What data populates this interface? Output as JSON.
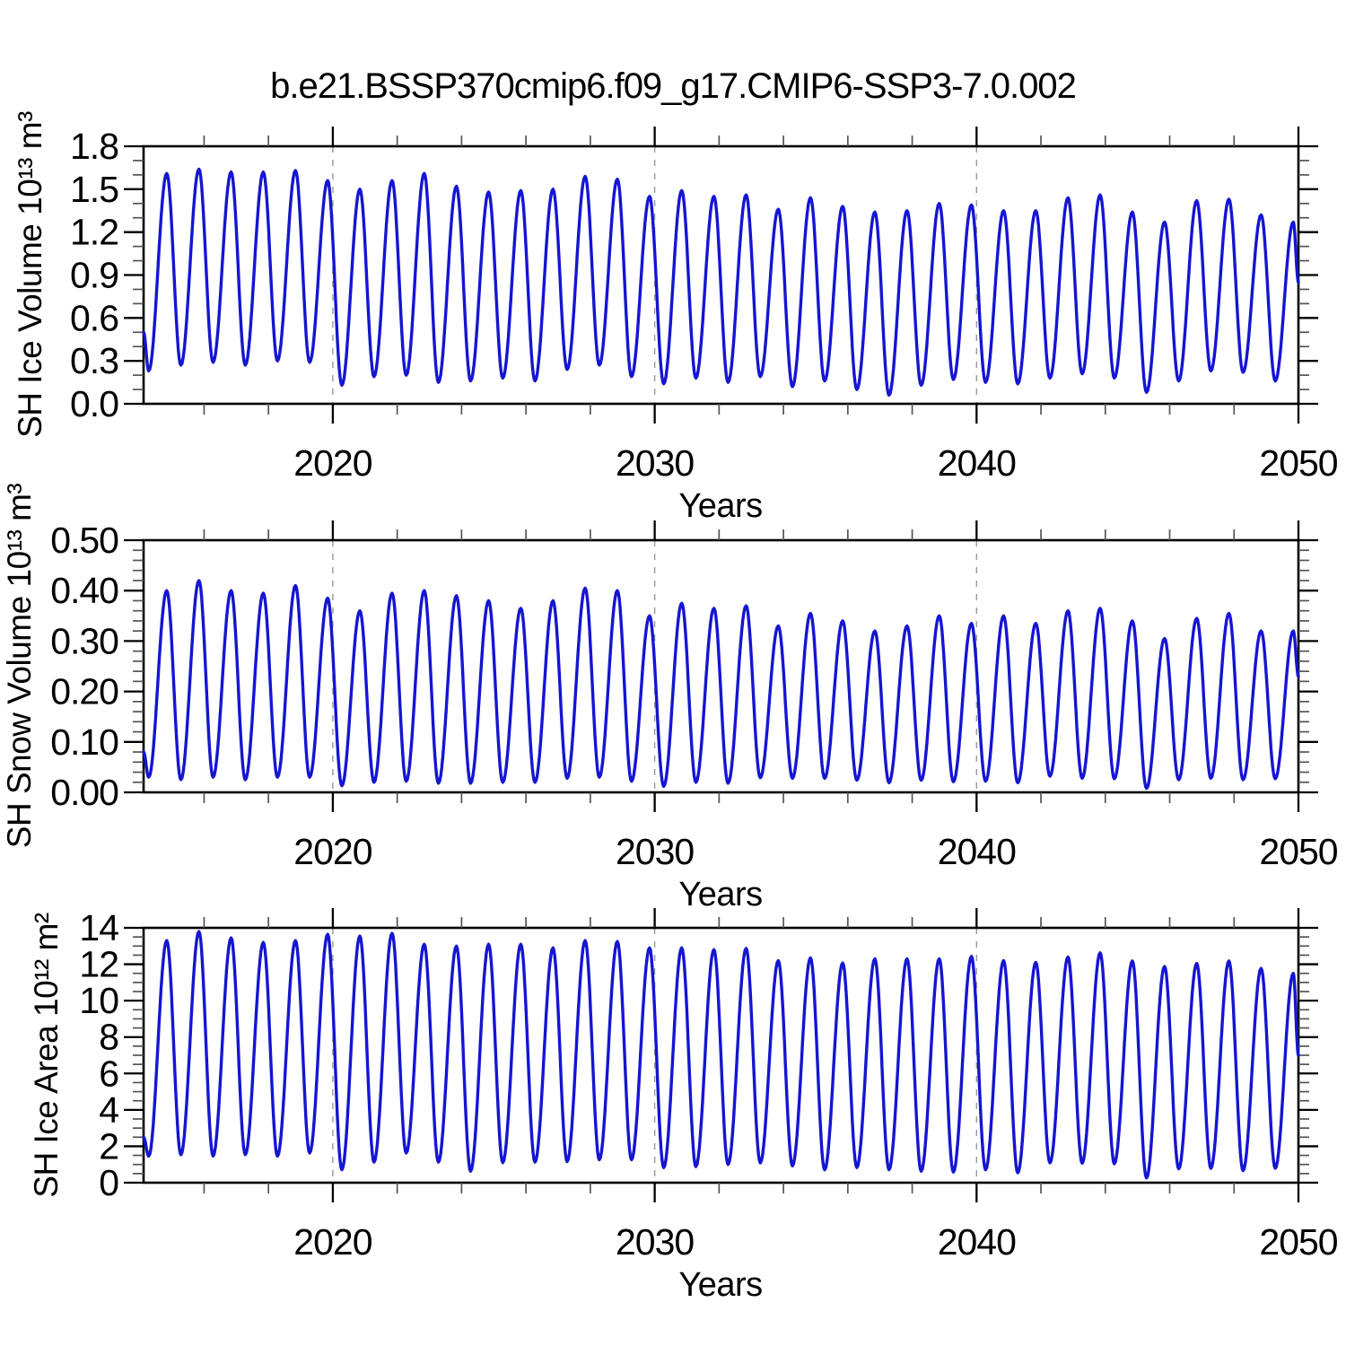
{
  "background": "#ffffff",
  "title": "b.e21.BSSP370cmip6.f09_g17.CMIP6-SSP3-7.0.002",
  "chart_data": [
    {
      "type": "line",
      "panel": "sh-ice-volume",
      "title": "",
      "xlabel": "Years",
      "ylabel": "SH Ice Volume 10¹³ m³",
      "line_color": "#1515d2",
      "grid_color": "#999999",
      "grid_years": [
        2020,
        2030,
        2040
      ],
      "x_range": [
        2014.12,
        2050
      ],
      "x_major_ticks": [
        2020,
        2030,
        2040,
        2050
      ],
      "x_tick_labels": [
        "2020",
        "2030",
        "2040",
        "2050"
      ],
      "x_minor_step": 2,
      "y_range": [
        0,
        1.8
      ],
      "y_major_ticks": [
        0,
        0.3,
        0.6,
        0.9,
        1.2,
        1.5,
        1.8
      ],
      "y_tick_labels": [
        "0.0",
        "0.3",
        "0.6",
        "0.9",
        "1.2",
        "1.5",
        "1.8"
      ],
      "y_minor_step": 0.1,
      "seasonal_cycle": {
        "first_year": 2014,
        "trough_phase": 0.28,
        "peak_phase": 0.84,
        "annual_peaks": [
          1.61,
          1.64,
          1.62,
          1.62,
          1.63,
          1.56,
          1.5,
          1.56,
          1.61,
          1.52,
          1.48,
          1.49,
          1.5,
          1.59,
          1.57,
          1.45,
          1.49,
          1.45,
          1.46,
          1.36,
          1.44,
          1.38,
          1.34,
          1.35,
          1.4,
          1.39,
          1.35,
          1.35,
          1.44,
          1.46,
          1.34,
          1.27,
          1.42,
          1.43,
          1.32,
          1.27
        ],
        "annual_troughs": [
          0.23,
          0.27,
          0.29,
          0.27,
          0.3,
          0.29,
          0.13,
          0.19,
          0.2,
          0.15,
          0.16,
          0.18,
          0.16,
          0.24,
          0.27,
          0.19,
          0.14,
          0.18,
          0.15,
          0.19,
          0.12,
          0.16,
          0.1,
          0.06,
          0.13,
          0.17,
          0.15,
          0.14,
          0.18,
          0.21,
          0.18,
          0.08,
          0.16,
          0.23,
          0.22,
          0.16
        ],
        "start_value": 0.5,
        "end_value": 0.85
      }
    },
    {
      "type": "line",
      "panel": "sh-snow-volume",
      "title": "",
      "xlabel": "Years",
      "ylabel": "SH Snow Volume 10¹³ m³",
      "line_color": "#1515d2",
      "grid_color": "#999999",
      "grid_years": [
        2020,
        2030,
        2040
      ],
      "x_range": [
        2014.12,
        2050
      ],
      "x_major_ticks": [
        2020,
        2030,
        2040,
        2050
      ],
      "x_tick_labels": [
        "2020",
        "2030",
        "2040",
        "2050"
      ],
      "x_minor_step": 2,
      "y_range": [
        0,
        0.5
      ],
      "y_major_ticks": [
        0,
        0.1,
        0.2,
        0.3,
        0.4,
        0.5
      ],
      "y_tick_labels": [
        "0.00",
        "0.10",
        "0.20",
        "0.30",
        "0.40",
        "0.50"
      ],
      "y_minor_step": 0.02,
      "seasonal_cycle": {
        "first_year": 2014,
        "trough_phase": 0.28,
        "peak_phase": 0.84,
        "annual_peaks": [
          0.4,
          0.42,
          0.4,
          0.395,
          0.41,
          0.385,
          0.36,
          0.395,
          0.4,
          0.39,
          0.38,
          0.365,
          0.38,
          0.405,
          0.4,
          0.35,
          0.375,
          0.365,
          0.37,
          0.33,
          0.355,
          0.34,
          0.32,
          0.33,
          0.35,
          0.335,
          0.35,
          0.335,
          0.36,
          0.365,
          0.34,
          0.305,
          0.345,
          0.355,
          0.32,
          0.32
        ],
        "annual_troughs": [
          0.03,
          0.025,
          0.03,
          0.025,
          0.03,
          0.03,
          0.013,
          0.02,
          0.022,
          0.018,
          0.018,
          0.02,
          0.02,
          0.028,
          0.03,
          0.022,
          0.012,
          0.02,
          0.018,
          0.029,
          0.028,
          0.028,
          0.024,
          0.019,
          0.024,
          0.021,
          0.022,
          0.019,
          0.032,
          0.028,
          0.027,
          0.008,
          0.025,
          0.028,
          0.025,
          0.027
        ],
        "start_value": 0.08,
        "end_value": 0.23
      }
    },
    {
      "type": "line",
      "panel": "sh-ice-area",
      "title": "",
      "xlabel": "Years",
      "ylabel": "SH Ice Area 10¹² m²",
      "line_color": "#1515d2",
      "grid_color": "#999999",
      "grid_years": [
        2020,
        2030,
        2040
      ],
      "x_range": [
        2014.12,
        2050
      ],
      "x_major_ticks": [
        2020,
        2030,
        2040,
        2050
      ],
      "x_tick_labels": [
        "2020",
        "2030",
        "2040",
        "2050"
      ],
      "x_minor_step": 2,
      "y_range": [
        0,
        14
      ],
      "y_major_ticks": [
        0,
        2,
        4,
        6,
        8,
        10,
        12,
        14
      ],
      "y_tick_labels": [
        "0",
        "2",
        "4",
        "6",
        "8",
        "10",
        "12",
        "14"
      ],
      "y_minor_step": 0.5,
      "seasonal_cycle": {
        "first_year": 2014,
        "trough_phase": 0.28,
        "peak_phase": 0.84,
        "annual_peaks": [
          13.3,
          13.8,
          13.45,
          13.2,
          13.3,
          13.65,
          13.55,
          13.7,
          13.1,
          13.0,
          13.1,
          13.1,
          12.9,
          13.3,
          13.25,
          12.9,
          12.9,
          12.8,
          12.87,
          12.2,
          12.35,
          12.07,
          12.3,
          12.3,
          12.3,
          12.43,
          12.2,
          12.1,
          12.4,
          12.63,
          12.18,
          11.88,
          12.05,
          12.18,
          11.77,
          11.5
        ],
        "annual_troughs": [
          1.46,
          1.54,
          1.46,
          1.54,
          1.46,
          1.63,
          0.71,
          1.13,
          1.63,
          1.13,
          0.63,
          1.1,
          1.13,
          1.16,
          1.26,
          1.26,
          0.83,
          0.88,
          1.0,
          1.09,
          0.92,
          0.71,
          0.83,
          0.71,
          0.63,
          0.58,
          0.71,
          0.54,
          1.09,
          1.07,
          1.04,
          0.26,
          0.76,
          0.79,
          0.66,
          0.79
        ],
        "start_value": 2.5,
        "end_value": 7.0
      }
    }
  ]
}
